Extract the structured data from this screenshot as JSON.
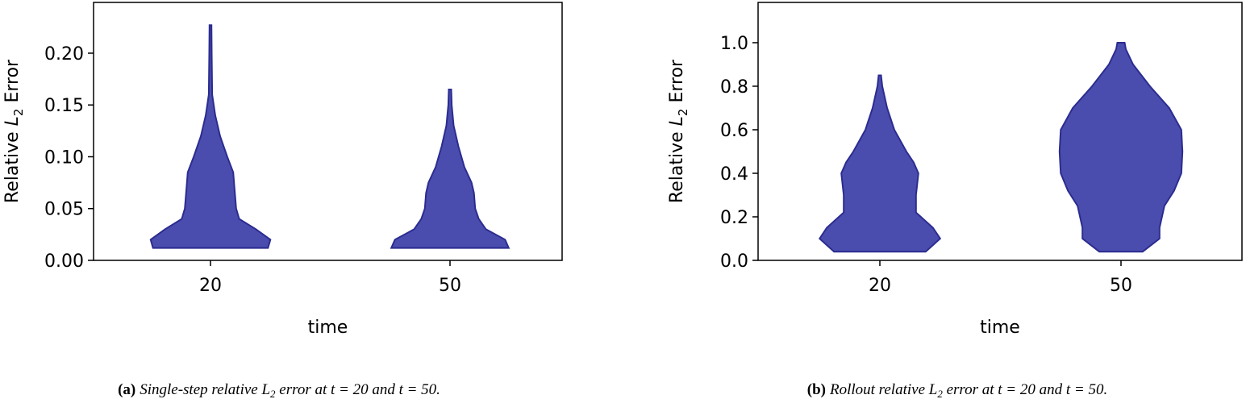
{
  "chart_data": [
    {
      "type": "violin",
      "xlabel": "time",
      "ylabel": {
        "prefix": "Relative ",
        "symbol": "L",
        "subscript": "2",
        "suffix": " Error"
      },
      "caption": {
        "label": "(a)",
        "before": "Single-step relative ",
        "symbol": "L",
        "subscript": "2",
        "after": " error at t = 20 and t = 50."
      },
      "categories": [
        "20",
        "50"
      ],
      "fill": "#4b4dae",
      "edge": "#2b2c8f",
      "ylim": [
        0,
        0.249
      ],
      "yticks": [
        {
          "value": 0,
          "label": "0.00"
        },
        {
          "value": 0.05,
          "label": "0.05"
        },
        {
          "value": 0.1,
          "label": "0.10"
        },
        {
          "value": 0.15,
          "label": "0.15"
        },
        {
          "value": 0.2,
          "label": "0.20"
        }
      ],
      "violins": [
        {
          "y": [
            0.012,
            0.02,
            0.03,
            0.04,
            0.05,
            0.07,
            0.085,
            0.1,
            0.12,
            0.14,
            0.16,
            0.2,
            0.227
          ],
          "half_width": [
            0.24,
            0.25,
            0.19,
            0.12,
            0.107,
            0.1,
            0.095,
            0.07,
            0.04,
            0.02,
            0.007,
            0.005,
            0.004
          ]
        },
        {
          "y": [
            0.012,
            0.02,
            0.03,
            0.04,
            0.05,
            0.065,
            0.075,
            0.09,
            0.11,
            0.13,
            0.15,
            0.165
          ],
          "half_width": [
            0.245,
            0.23,
            0.15,
            0.12,
            0.105,
            0.1,
            0.09,
            0.06,
            0.035,
            0.015,
            0.007,
            0.005
          ]
        }
      ]
    },
    {
      "type": "violin",
      "xlabel": "time",
      "ylabel": {
        "prefix": "Relative ",
        "symbol": "L",
        "subscript": "2",
        "suffix": " Error"
      },
      "caption": {
        "label": "(b)",
        "before": "Rollout relative ",
        "symbol": "L",
        "subscript": "2",
        "after": " error at t = 20 and t = 50."
      },
      "categories": [
        "20",
        "50"
      ],
      "fill": "#4b4dae",
      "edge": "#2b2c8f",
      "ylim": [
        0,
        1.185
      ],
      "yticks": [
        {
          "value": 0,
          "label": "0.0"
        },
        {
          "value": 0.2,
          "label": "0.2"
        },
        {
          "value": 0.4,
          "label": "0.4"
        },
        {
          "value": 0.6,
          "label": "0.6"
        },
        {
          "value": 0.8,
          "label": "0.8"
        },
        {
          "value": 1,
          "label": "1.0"
        }
      ],
      "violins": [
        {
          "y": [
            0.04,
            0.1,
            0.15,
            0.22,
            0.3,
            0.4,
            0.45,
            0.5,
            0.6,
            0.7,
            0.8,
            0.85
          ],
          "half_width": [
            0.19,
            0.25,
            0.22,
            0.15,
            0.15,
            0.16,
            0.14,
            0.11,
            0.06,
            0.03,
            0.01,
            0.005
          ]
        },
        {
          "y": [
            0.04,
            0.1,
            0.15,
            0.25,
            0.32,
            0.4,
            0.5,
            0.6,
            0.7,
            0.8,
            0.9,
            0.97,
            1.0
          ],
          "half_width": [
            0.09,
            0.16,
            0.16,
            0.18,
            0.22,
            0.25,
            0.255,
            0.25,
            0.2,
            0.12,
            0.05,
            0.02,
            0.015
          ]
        }
      ]
    }
  ]
}
